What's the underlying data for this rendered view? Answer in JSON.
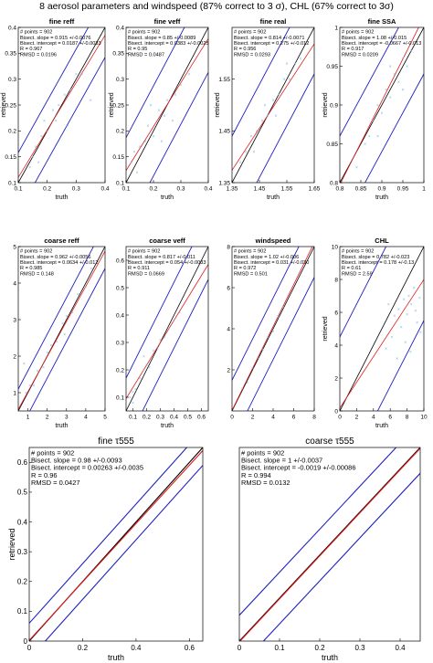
{
  "figure_title": "8 aerosol parameters and windspeed (87% correct to 3 σ), CHL (67% correct to 3σ)",
  "colors": {
    "data_points": "#6fb7dc",
    "fit_line": "#e01b1b",
    "one_to_one_line": "#000000",
    "bound_lines": "#1f1fbf"
  },
  "chart_data": [
    {
      "type": "scatter",
      "title": "fine reff",
      "xlabel": "truth",
      "ylabel": "retrieved",
      "xlim": [
        0.1,
        0.4
      ],
      "ylim": [
        0.1,
        0.4
      ],
      "xticks": [
        "0.1",
        "0.2",
        "0.3",
        "0.4"
      ],
      "yticks": [
        "0.1",
        "0.15",
        "0.2",
        "0.25",
        "0.3",
        "0.35",
        "0.4"
      ],
      "stats": [
        "# points = 902",
        "Bisect. slope = 0.915 +/-0.0076",
        "Bisect. intercept = 0.0187 +/-0.0033",
        "R = 0.967",
        "RMSD = 0.0196"
      ],
      "fit": {
        "slope": 0.915,
        "intercept": 0.0187
      },
      "bound_offset": 0.058,
      "points": [
        [
          0.14,
          0.13
        ],
        [
          0.15,
          0.15
        ],
        [
          0.16,
          0.17
        ],
        [
          0.18,
          0.19
        ],
        [
          0.2,
          0.2
        ],
        [
          0.22,
          0.24
        ],
        [
          0.24,
          0.25
        ],
        [
          0.26,
          0.27
        ],
        [
          0.28,
          0.28
        ],
        [
          0.3,
          0.31
        ],
        [
          0.32,
          0.31
        ],
        [
          0.35,
          0.26
        ],
        [
          0.27,
          0.21
        ],
        [
          0.23,
          0.22
        ],
        [
          0.17,
          0.14
        ],
        [
          0.19,
          0.22
        ]
      ],
      "grid": false
    },
    {
      "type": "scatter",
      "title": "fine veff",
      "xlabel": "truth",
      "ylabel": "retrieved",
      "xlim": [
        0.1,
        0.4
      ],
      "ylim": [
        0.1,
        0.4
      ],
      "xticks": [
        "0.1",
        "0.2",
        "0.3",
        "0.4"
      ],
      "yticks": [
        "0.1",
        "0.15",
        "0.2",
        "0.25",
        "0.3",
        "0.35",
        "0.4"
      ],
      "stats": [
        "# points = 902",
        "Bisect. slope = 0.85 +/-0.0089",
        "Bisect. intercept = 0.0383 +/-0.0025",
        "R = 0.95",
        "RMSD = 0.0487"
      ],
      "fit": {
        "slope": 0.85,
        "intercept": 0.0383
      },
      "bound_offset": 0.087,
      "points": [
        [
          0.12,
          0.14
        ],
        [
          0.13,
          0.16
        ],
        [
          0.15,
          0.17
        ],
        [
          0.17,
          0.18
        ],
        [
          0.18,
          0.21
        ],
        [
          0.2,
          0.19
        ],
        [
          0.22,
          0.24
        ],
        [
          0.24,
          0.23
        ],
        [
          0.25,
          0.26
        ],
        [
          0.28,
          0.27
        ],
        [
          0.3,
          0.29
        ],
        [
          0.33,
          0.31
        ],
        [
          0.14,
          0.12
        ],
        [
          0.19,
          0.25
        ],
        [
          0.23,
          0.18
        ],
        [
          0.27,
          0.22
        ]
      ],
      "grid": false
    },
    {
      "type": "scatter",
      "title": "fine real",
      "xlabel": "truth",
      "ylabel": "retrieved",
      "xlim": [
        1.35,
        1.65
      ],
      "ylim": [
        1.35,
        1.65
      ],
      "xticks": [
        "1.35",
        "1.45",
        "1.55",
        "1.65"
      ],
      "yticks": [
        "1.35",
        "1.45",
        "1.55"
      ],
      "stats": [
        "# points = 902",
        "Bisect. slope = 0.814 +/-0.0071",
        "Bisect. intercept = 0.275 +/-0.012",
        "R = 0.956",
        "RMSD = 0.0293"
      ],
      "fit": {
        "slope": 0.814,
        "intercept": 0.275
      },
      "bound_offset": 0.09,
      "points": [
        [
          1.38,
          1.39
        ],
        [
          1.4,
          1.41
        ],
        [
          1.42,
          1.44
        ],
        [
          1.44,
          1.45
        ],
        [
          1.46,
          1.47
        ],
        [
          1.48,
          1.48
        ],
        [
          1.5,
          1.51
        ],
        [
          1.52,
          1.52
        ],
        [
          1.54,
          1.55
        ],
        [
          1.56,
          1.55
        ],
        [
          1.58,
          1.58
        ],
        [
          1.6,
          1.59
        ],
        [
          1.43,
          1.41
        ],
        [
          1.47,
          1.5
        ],
        [
          1.51,
          1.48
        ],
        [
          1.55,
          1.58
        ]
      ],
      "grid": false
    },
    {
      "type": "scatter",
      "title": "fine SSA",
      "xlabel": "truth",
      "ylabel": "retrieved",
      "xlim": [
        0.8,
        1.0
      ],
      "ylim": [
        0.8,
        1.0
      ],
      "xticks": [
        "0.8",
        "0.85",
        "0.9",
        "0.95",
        "1"
      ],
      "yticks": [
        "0.8",
        "0.85",
        "0.9",
        "0.95",
        "1"
      ],
      "stats": [
        "# points = 902",
        "Bisect. slope = 1.08 +/-0.015",
        "Bisect. intercept = -0.0667 +/-0.013",
        "R = 0.917",
        "RMSD = 0.0209"
      ],
      "fit": {
        "slope": 1.08,
        "intercept": -0.0667
      },
      "bound_offset": 0.06,
      "points": [
        [
          0.84,
          0.82
        ],
        [
          0.86,
          0.85
        ],
        [
          0.87,
          0.86
        ],
        [
          0.88,
          0.88
        ],
        [
          0.89,
          0.9
        ],
        [
          0.9,
          0.89
        ],
        [
          0.91,
          0.92
        ],
        [
          0.92,
          0.91
        ],
        [
          0.93,
          0.94
        ],
        [
          0.94,
          0.93
        ],
        [
          0.95,
          0.96
        ],
        [
          0.96,
          0.95
        ],
        [
          0.97,
          0.97
        ],
        [
          0.89,
          0.86
        ],
        [
          0.92,
          0.95
        ],
        [
          0.95,
          0.92
        ]
      ],
      "grid": false
    },
    {
      "type": "scatter",
      "title": "coarse reff",
      "xlabel": "truth",
      "ylabel": "",
      "xlim": [
        0.5,
        5
      ],
      "ylim": [
        0.5,
        5
      ],
      "xticks": [
        "1",
        "2",
        "3",
        "4",
        "5"
      ],
      "yticks": [
        "1",
        "2",
        "3",
        "4",
        "5"
      ],
      "stats": [
        "# points = 902",
        "Bisect. slope = 0.962 +/-0.0056",
        "Bisect. intercept = 0.0634 +/-0.012",
        "R = 0.985",
        "RMSD = 0.148"
      ],
      "fit": {
        "slope": 0.962,
        "intercept": 0.0634
      },
      "bound_offset": 0.6,
      "points": [
        [
          0.9,
          1.0
        ],
        [
          1.1,
          1.2
        ],
        [
          1.3,
          1.2
        ],
        [
          1.5,
          1.6
        ],
        [
          1.8,
          1.7
        ],
        [
          2.0,
          2.1
        ],
        [
          2.2,
          2.3
        ],
        [
          2.5,
          2.4
        ],
        [
          2.8,
          2.9
        ],
        [
          3.0,
          3.1
        ],
        [
          3.3,
          3.2
        ],
        [
          3.6,
          3.7
        ],
        [
          4.0,
          3.9
        ],
        [
          4.3,
          4.4
        ],
        [
          0.8,
          1.8
        ],
        [
          2.9,
          2.6
        ]
      ],
      "grid": false
    },
    {
      "type": "scatter",
      "title": "coarse veff",
      "xlabel": "truth",
      "ylabel": "",
      "xlim": [
        0.05,
        0.65
      ],
      "ylim": [
        0.05,
        0.65
      ],
      "xticks": [
        "0.1",
        "0.2",
        "0.3",
        "0.4",
        "0.5",
        "0.6"
      ],
      "yticks": [
        "0.1",
        "0.2",
        "0.3",
        "0.4",
        "0.5",
        "0.6"
      ],
      "stats": [
        "# points = 902",
        "Bisect. slope = 0.817 +/-0.011",
        "Bisect. intercept = 0.054 +/-0.0033",
        "R = 0.911",
        "RMSD = 0.0669"
      ],
      "fit": {
        "slope": 0.817,
        "intercept": 0.054
      },
      "bound_offset": 0.12,
      "points": [
        [
          0.08,
          0.1
        ],
        [
          0.1,
          0.12
        ],
        [
          0.12,
          0.13
        ],
        [
          0.15,
          0.17
        ],
        [
          0.18,
          0.2
        ],
        [
          0.2,
          0.22
        ],
        [
          0.22,
          0.21
        ],
        [
          0.25,
          0.27
        ],
        [
          0.28,
          0.28
        ],
        [
          0.3,
          0.31
        ],
        [
          0.33,
          0.32
        ],
        [
          0.36,
          0.35
        ],
        [
          0.4,
          0.38
        ],
        [
          0.44,
          0.41
        ],
        [
          0.1,
          0.08
        ],
        [
          0.18,
          0.25
        ]
      ],
      "grid": false
    },
    {
      "type": "scatter",
      "title": "windspeed",
      "xlabel": "",
      "ylabel": "",
      "xlim": [
        0,
        8
      ],
      "ylim": [
        0,
        8
      ],
      "xticks": [
        "0",
        "2",
        "4",
        "6",
        "8"
      ],
      "yticks": [
        "2",
        "4",
        "6",
        "8"
      ],
      "stats": [
        "# points = 902",
        "Bisect. slope = 1.02 +/-0.006",
        "Bisect. intercept = 0.031 +/-0.030",
        "R = 0.972",
        "RMSD = 0.501"
      ],
      "fit": {
        "slope": 1.02,
        "intercept": 0.031
      },
      "bound_offset": 1.5,
      "points": [
        [
          1.0,
          1.1
        ],
        [
          1.5,
          1.4
        ],
        [
          2.0,
          2.1
        ],
        [
          2.5,
          2.6
        ],
        [
          3.0,
          3.0
        ],
        [
          3.5,
          3.6
        ],
        [
          4.0,
          3.9
        ],
        [
          4.5,
          4.6
        ],
        [
          5.0,
          5.1
        ]
      ],
      "grid": false
    },
    {
      "type": "scatter",
      "title": "CHL",
      "xlabel": "truth",
      "ylabel": "retrieved",
      "xlim": [
        0,
        10
      ],
      "ylim": [
        0,
        10
      ],
      "xticks": [
        "0",
        "2",
        "4",
        "6",
        "8",
        "10"
      ],
      "yticks": [
        "0",
        "2",
        "4",
        "6",
        "8",
        "10"
      ],
      "stats": [
        "# points = 902",
        "Bisect. slope = 0.782 +/-0.023",
        "Bisect. intercept = 0.178 +/-0.13",
        "R = 0.61",
        "RMSD = 2.59"
      ],
      "fit": {
        "slope": 0.782,
        "intercept": 0.178
      },
      "bound_offset": 4.5,
      "points": [
        [
          6.2,
          4.5
        ],
        [
          6.5,
          5.8
        ],
        [
          7.0,
          6.2
        ],
        [
          7.3,
          5.1
        ],
        [
          7.6,
          6.8
        ],
        [
          8.0,
          5.9
        ],
        [
          8.2,
          7.0
        ],
        [
          8.5,
          6.5
        ],
        [
          8.8,
          7.5
        ],
        [
          9.0,
          6.1
        ],
        [
          9.2,
          5.4
        ],
        [
          9.5,
          6.9
        ],
        [
          5.5,
          3.8
        ],
        [
          6.8,
          3.2
        ],
        [
          7.8,
          4.2
        ],
        [
          8.4,
          3.6
        ],
        [
          5.8,
          6.5
        ],
        [
          9.6,
          4.8
        ]
      ],
      "grid": false
    },
    {
      "type": "scatter",
      "title": "fine τ555",
      "xlabel": "truth",
      "ylabel": "retrieved",
      "xlim": [
        0,
        0.65
      ],
      "ylim": [
        0,
        0.65
      ],
      "xticks": [
        "0",
        "0.2",
        "0.4",
        "0.6"
      ],
      "yticks": [
        "0",
        "0.1",
        "0.2",
        "0.3",
        "0.4",
        "0.5",
        "0.6"
      ],
      "stats": [
        "# points = 902",
        "Bisect. slope = 0.98 +/-0.0093",
        "Bisect. intercept = 0.00263 +/-0.0035",
        "R = 0.96",
        "RMSD = 0.0427"
      ],
      "fit": {
        "slope": 0.98,
        "intercept": 0.00263
      },
      "bound_offset": 0.06,
      "points": [],
      "grid": false
    },
    {
      "type": "scatter",
      "title": "coarse τ555",
      "xlabel": "truth",
      "ylabel": "",
      "xlim": [
        0,
        0.45
      ],
      "ylim": [
        0,
        0.45
      ],
      "xticks": [
        "0",
        "0.1",
        "0.2",
        "0.3",
        "0.4"
      ],
      "yticks": [],
      "stats": [
        "# points = 902",
        "Bisect. slope = 1 +/-0.0037",
        "Bisect. intercept = -0.0019 +/-0.00086",
        "R = 0.994",
        "RMSD = 0.0132"
      ],
      "fit": {
        "slope": 1.0,
        "intercept": -0.0019
      },
      "bound_offset": 0.06,
      "points": [],
      "grid": false
    }
  ]
}
